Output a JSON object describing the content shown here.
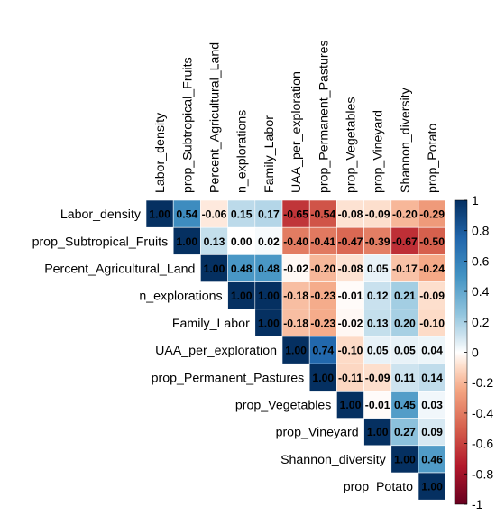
{
  "chart_data": {
    "type": "heatmap",
    "subtype": "upper-triangle correlation matrix",
    "variables": [
      "Labor_density",
      "prop_Subtropical_Fruits",
      "Percent_Agricultural_Land",
      "n_explorations",
      "Family_Labor",
      "UAA_per_exploration",
      "prop_Permanent_Pastures",
      "prop_Vegetables",
      "prop_Vineyard",
      "Shannon_diversity",
      "prop_Potato"
    ],
    "matrix": [
      [
        1.0,
        0.54,
        -0.06,
        0.15,
        0.17,
        -0.65,
        -0.54,
        -0.08,
        -0.09,
        -0.2,
        -0.29
      ],
      [
        null,
        1.0,
        0.13,
        0.0,
        0.02,
        -0.4,
        -0.41,
        -0.47,
        -0.39,
        -0.67,
        -0.5
      ],
      [
        null,
        null,
        1.0,
        0.48,
        0.48,
        -0.02,
        -0.2,
        -0.08,
        0.05,
        -0.17,
        -0.24
      ],
      [
        null,
        null,
        null,
        1.0,
        1.0,
        -0.18,
        -0.23,
        -0.01,
        0.12,
        0.21,
        -0.09
      ],
      [
        null,
        null,
        null,
        null,
        1.0,
        -0.18,
        -0.23,
        -0.02,
        0.13,
        0.2,
        -0.1
      ],
      [
        null,
        null,
        null,
        null,
        null,
        1.0,
        0.74,
        -0.1,
        0.05,
        0.05,
        0.04
      ],
      [
        null,
        null,
        null,
        null,
        null,
        null,
        1.0,
        -0.11,
        -0.09,
        0.11,
        0.14
      ],
      [
        null,
        null,
        null,
        null,
        null,
        null,
        null,
        1.0,
        -0.01,
        0.45,
        0.03
      ],
      [
        null,
        null,
        null,
        null,
        null,
        null,
        null,
        null,
        1.0,
        0.27,
        0.09
      ],
      [
        null,
        null,
        null,
        null,
        null,
        null,
        null,
        null,
        null,
        1.0,
        0.46
      ],
      [
        null,
        null,
        null,
        null,
        null,
        null,
        null,
        null,
        null,
        null,
        1.0
      ]
    ],
    "colorbar": {
      "range": [
        -1,
        1
      ],
      "ticks": [
        1,
        0.8,
        0.6,
        0.4,
        0.2,
        0,
        -0.2,
        -0.4,
        -0.6,
        -0.8,
        -1
      ],
      "tick_labels": [
        "1",
        "0.8",
        "0.6",
        "0.4",
        "0.2",
        "0",
        "-0.2",
        "-0.4",
        "-0.6",
        "-0.8",
        "-1"
      ],
      "color_stops": [
        {
          "v": -1.0,
          "c": "#67001f"
        },
        {
          "v": -0.75,
          "c": "#b2182b"
        },
        {
          "v": -0.5,
          "c": "#d6604d"
        },
        {
          "v": -0.25,
          "c": "#f4a582"
        },
        {
          "v": -0.1,
          "c": "#fddbc7"
        },
        {
          "v": 0.0,
          "c": "#ffffff"
        },
        {
          "v": 0.1,
          "c": "#d1e5f0"
        },
        {
          "v": 0.25,
          "c": "#92c5de"
        },
        {
          "v": 0.5,
          "c": "#4393c3"
        },
        {
          "v": 0.75,
          "c": "#2166ac"
        },
        {
          "v": 1.0,
          "c": "#053061"
        }
      ]
    },
    "value_format": "2 decimals",
    "grid": false,
    "legend": "right"
  }
}
